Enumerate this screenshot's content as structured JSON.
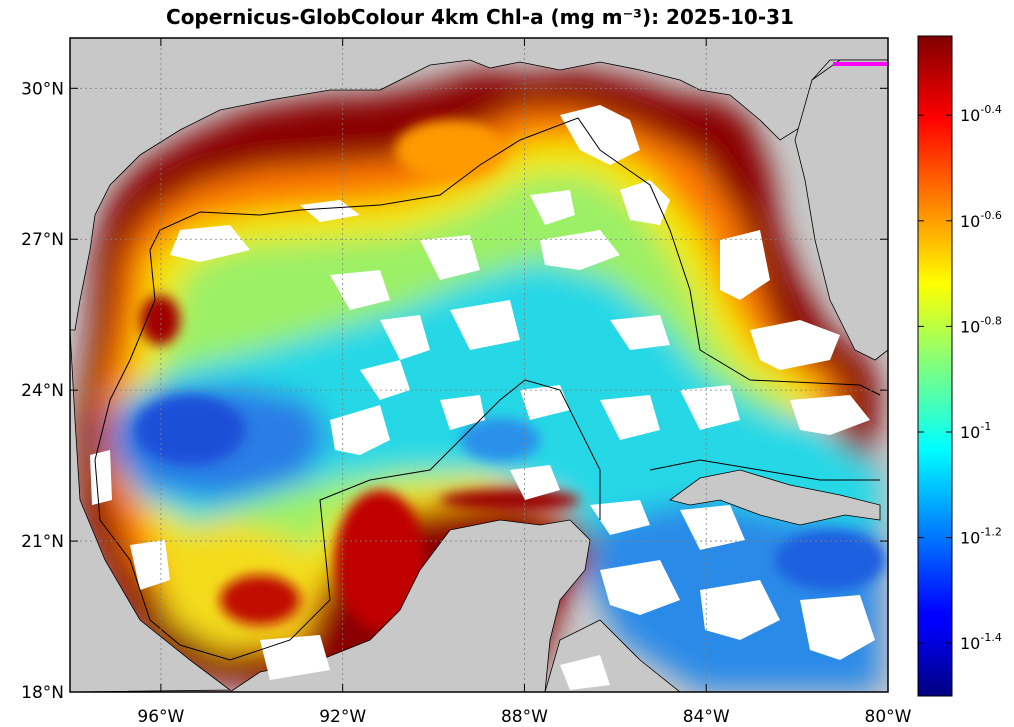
{
  "chart_data": {
    "type": "heatmap",
    "title": "Copernicus-GlobColour 4km Chl-a (mg m⁻³): 2025-10-31",
    "xlabel": "",
    "ylabel": "",
    "x_range": [
      -98,
      -80
    ],
    "y_range": [
      18,
      31
    ],
    "x_ticks": [
      {
        "value": -96,
        "label": "96°W"
      },
      {
        "value": -92,
        "label": "92°W"
      },
      {
        "value": -88,
        "label": "88°W"
      },
      {
        "value": -84,
        "label": "84°W"
      },
      {
        "value": -80,
        "label": "80°W"
      }
    ],
    "y_ticks": [
      {
        "value": 30,
        "label": "30°N"
      },
      {
        "value": 27,
        "label": "27°N"
      },
      {
        "value": 24,
        "label": "24°N"
      },
      {
        "value": 21,
        "label": "21°N"
      },
      {
        "value": 18,
        "label": "18°N"
      }
    ],
    "grid": true,
    "colorbar": {
      "scale": "log10",
      "range": [
        -1.5,
        -0.25
      ],
      "colormap": "jet",
      "ticks": [
        {
          "value": -0.4,
          "base": "10",
          "exp": "-0.4"
        },
        {
          "value": -0.6,
          "base": "10",
          "exp": "-0.6"
        },
        {
          "value": -0.8,
          "base": "10",
          "exp": "-0.8"
        },
        {
          "value": -1.0,
          "base": "10",
          "exp": "-1"
        },
        {
          "value": -1.2,
          "base": "10",
          "exp": "-1.2"
        },
        {
          "value": -1.4,
          "base": "10",
          "exp": "-1.4"
        }
      ]
    },
    "colors": {
      "land": "#c8c8c8",
      "no_data": "#ffffff",
      "high": "#7f0000",
      "low": "#00007f",
      "marker": "#ff00ff"
    }
  }
}
